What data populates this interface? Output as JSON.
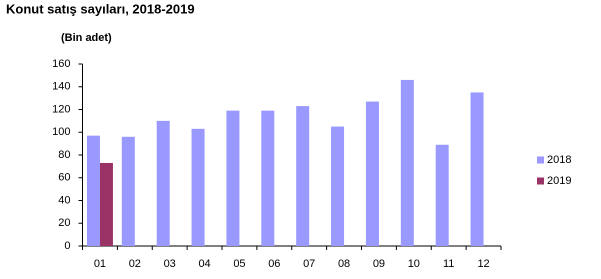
{
  "chart_data": {
    "type": "bar",
    "title": "Konut satış sayıları, 2018-2019",
    "y_label": "(Bin adet)",
    "categories": [
      "01",
      "02",
      "03",
      "04",
      "05",
      "06",
      "07",
      "08",
      "09",
      "10",
      "11",
      "12"
    ],
    "series": [
      {
        "name": "2018",
        "color": "#9999ff",
        "values": [
          97,
          96,
          110,
          103,
          119,
          119,
          123,
          105,
          127,
          146,
          89,
          135
        ]
      },
      {
        "name": "2019",
        "color": "#993366",
        "values": [
          73,
          null,
          null,
          null,
          null,
          null,
          null,
          null,
          null,
          null,
          null,
          null
        ]
      }
    ],
    "ylim": [
      0,
      160
    ],
    "yticks": [
      0,
      20,
      40,
      60,
      80,
      100,
      120,
      140,
      160
    ],
    "grid": false,
    "legend": "right"
  }
}
